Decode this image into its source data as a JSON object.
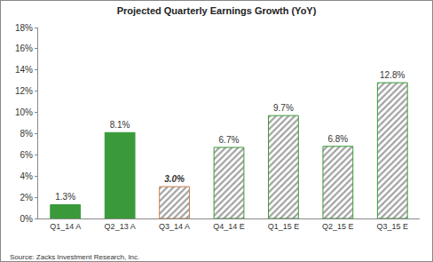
{
  "chart_data": {
    "type": "bar",
    "title": "Projected Quarterly Earnings Growth (YoY)",
    "categories": [
      "Q1_14 A",
      "Q2_13 A",
      "Q3_14 A",
      "Q4_14 E",
      "Q1_15 E",
      "Q2_15 E",
      "Q3_15 E"
    ],
    "values": [
      1.3,
      8.1,
      3.0,
      6.7,
      9.7,
      6.8,
      12.8
    ],
    "value_labels": [
      "1.3%",
      "8.1%",
      "3.0%",
      "6.7%",
      "9.7%",
      "6.8%",
      "12.8%"
    ],
    "colors": [
      "#3a9a3a",
      "#3a9a3a",
      "#c8804e",
      "#3a9a3a",
      "#3a9a3a",
      "#3a9a3a",
      "#3a9a3a"
    ],
    "ylim": [
      0,
      18
    ],
    "yticks": [
      {
        "value": 0,
        "label": "0%"
      },
      {
        "value": 2,
        "label": "2%"
      },
      {
        "value": 4,
        "label": "4%"
      },
      {
        "value": 6,
        "label": "6%"
      },
      {
        "value": 8,
        "label": "8%"
      },
      {
        "value": 10,
        "label": "10%"
      },
      {
        "value": 12,
        "label": "12%"
      },
      {
        "value": 14,
        "label": "14%"
      },
      {
        "value": 16,
        "label": "16%"
      },
      {
        "value": 18,
        "label": "18%"
      }
    ],
    "grid": false,
    "data_labels": true,
    "annotations": [
      "Source: Zacks Investment Research, Inc."
    ]
  }
}
